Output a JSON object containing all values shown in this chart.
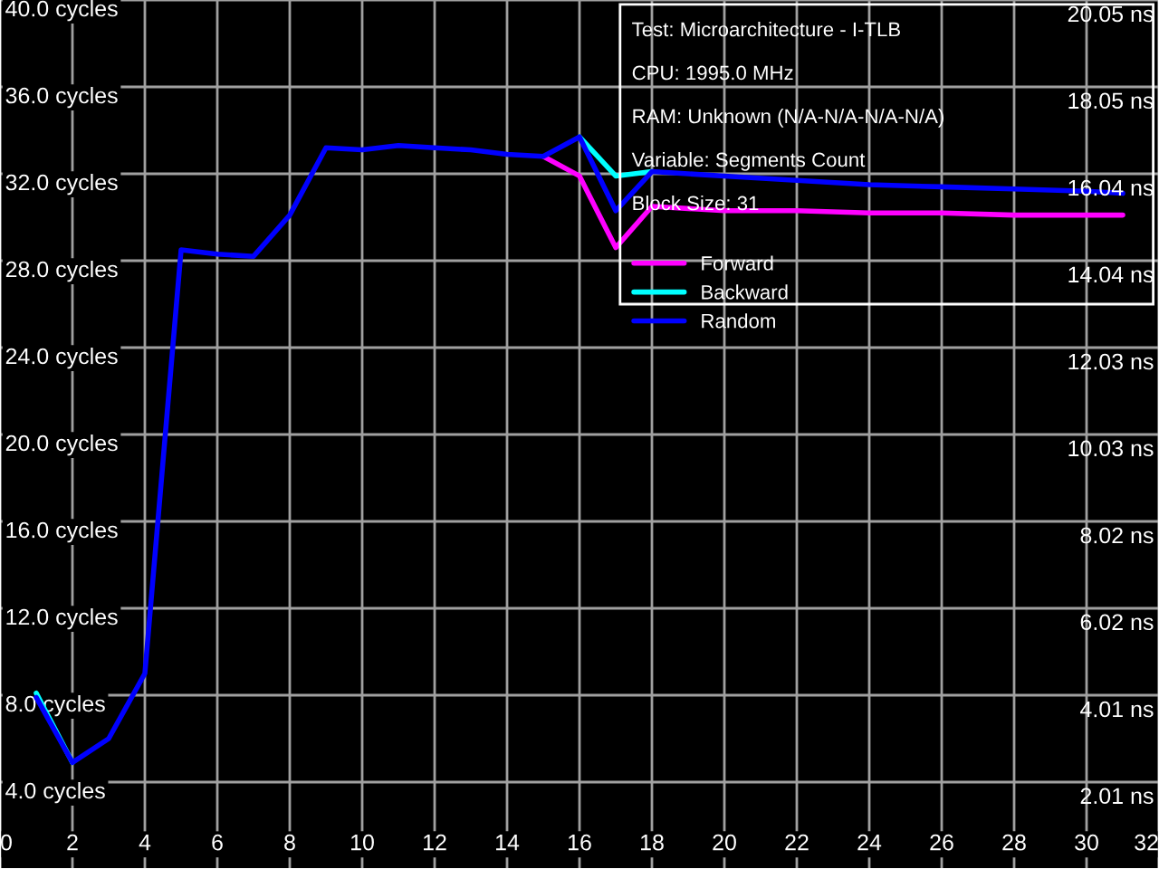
{
  "chart_data": {
    "type": "line",
    "annotations": [
      "Test: Microarchitecture - I-TLB",
      "CPU: 1995.0 MHz",
      "RAM: Unknown (N/A-N/A-N/A-N/A)",
      "Variable: Segments Count",
      "Block Size: 31"
    ],
    "series": [
      {
        "name": "Forward",
        "color": "#ff00ff",
        "x": [
          15,
          16,
          17,
          18,
          20,
          22,
          24,
          26,
          28,
          30,
          31
        ],
        "values": [
          32.8,
          31.9,
          28.6,
          30.5,
          30.3,
          30.3,
          30.2,
          30.2,
          30.1,
          30.1,
          30.1
        ]
      },
      {
        "name": "Backward",
        "color": "#00ffff",
        "x": [
          1,
          2,
          3,
          4,
          5,
          6,
          7,
          8,
          9,
          10,
          11,
          12,
          13,
          14,
          15,
          16,
          17,
          18
        ],
        "values": [
          8.1,
          4.9,
          null,
          null,
          null,
          null,
          null,
          null,
          null,
          null,
          null,
          null,
          null,
          null,
          null,
          33.7,
          31.9,
          32.1
        ]
      },
      {
        "name": "Random",
        "color": "#0000ff",
        "x": [
          1,
          2,
          3,
          4,
          5,
          6,
          7,
          8,
          9,
          10,
          11,
          12,
          13,
          14,
          15,
          16,
          17,
          18,
          20,
          22,
          24,
          26,
          28,
          30,
          31
        ],
        "values": [
          7.9,
          4.9,
          6.0,
          9.0,
          28.5,
          28.3,
          28.2,
          30.1,
          33.2,
          33.1,
          33.3,
          33.2,
          33.1,
          32.9,
          32.8,
          33.7,
          30.3,
          32.1,
          31.9,
          31.7,
          31.5,
          31.4,
          31.3,
          31.2,
          31.1
        ]
      }
    ],
    "xlim": [
      0,
      32
    ],
    "xticks": [
      0,
      2,
      4,
      6,
      8,
      10,
      12,
      14,
      16,
      18,
      20,
      22,
      24,
      26,
      28,
      30,
      32
    ],
    "ylim": [
      0,
      40
    ],
    "yticks": [
      {
        "value": 4,
        "label": "4.0 cycles"
      },
      {
        "value": 8,
        "label": "8.0 cycles"
      },
      {
        "value": 12,
        "label": "12.0 cycles"
      },
      {
        "value": 16,
        "label": "16.0 cycles"
      },
      {
        "value": 20,
        "label": "20.0 cycles"
      },
      {
        "value": 24,
        "label": "24.0 cycles"
      },
      {
        "value": 28,
        "label": "28.0 cycles"
      },
      {
        "value": 32,
        "label": "32.0 cycles"
      },
      {
        "value": 36,
        "label": "36.0 cycles"
      },
      {
        "value": 40,
        "label": "40.0 cycles"
      }
    ],
    "y2lim": [
      0,
      20.05
    ],
    "y2ticks": [
      {
        "value": 2.01,
        "label": "2.01 ns"
      },
      {
        "value": 4.01,
        "label": "4.01 ns"
      },
      {
        "value": 6.02,
        "label": "6.02 ns"
      },
      {
        "value": 8.02,
        "label": "8.02 ns"
      },
      {
        "value": 10.03,
        "label": "10.03 ns"
      },
      {
        "value": 12.03,
        "label": "12.03 ns"
      },
      {
        "value": 14.04,
        "label": "14.04 ns"
      },
      {
        "value": 16.04,
        "label": "16.04 ns"
      },
      {
        "value": 18.05,
        "label": "18.05 ns"
      },
      {
        "value": 20.05,
        "label": "20.05 ns"
      }
    ],
    "grid": true,
    "legend": "top right",
    "marker": "none",
    "line_style": "solid"
  }
}
